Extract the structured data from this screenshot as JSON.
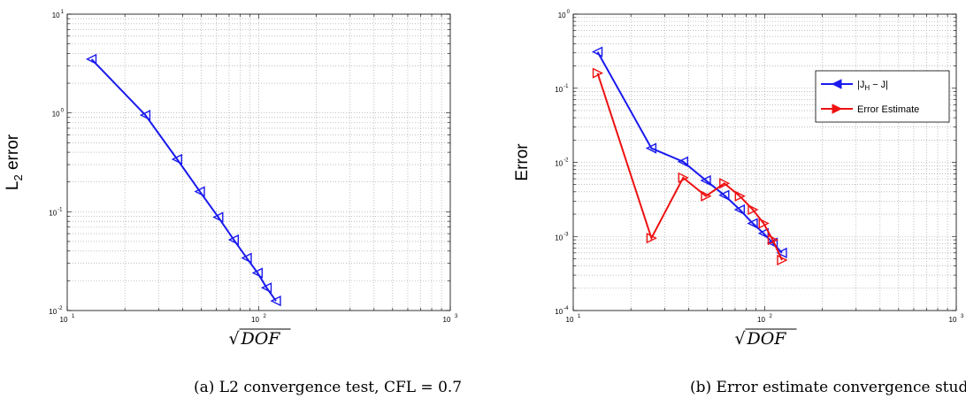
{
  "chart_data": [
    {
      "type": "line",
      "scale": "log-log",
      "xlabel": "√DOF",
      "ylabel": "L2 error",
      "xlim": [
        10,
        1000
      ],
      "ylim": [
        0.01,
        10
      ],
      "grid": true,
      "caption": "(a) L2 convergence test, CFL = 0.7",
      "x_ticks": [
        "10^1",
        "10^2",
        "10^3"
      ],
      "y_ticks": [
        "10^-2",
        "10^-1",
        "10^0",
        "10^1"
      ],
      "series": [
        {
          "color": "#1a1aee",
          "marker": "triangle-left",
          "x": [
            13.4,
            25.6,
            37.5,
            49.3,
            61.5,
            74.1,
            86.6,
            98.7,
            110.0,
            123.0
          ],
          "y": [
            3.5,
            0.95,
            0.34,
            0.16,
            0.088,
            0.052,
            0.034,
            0.024,
            0.017,
            0.0125
          ]
        }
      ]
    },
    {
      "type": "line",
      "scale": "log-log",
      "xlabel": "√DOF",
      "ylabel": "Error",
      "xlim": [
        10,
        1000
      ],
      "ylim": [
        0.0001,
        1
      ],
      "grid": true,
      "legend_position": "upper-right",
      "caption": "(b) Error estimate convergence study",
      "x_ticks": [
        "10^1",
        "10^2",
        "10^3"
      ],
      "y_ticks": [
        "10^-4",
        "10^-3",
        "10^-2",
        "10^-1",
        "10^0"
      ],
      "series": [
        {
          "name": "|J_H − J|",
          "color": "#1a1aee",
          "marker": "triangle-left",
          "x": [
            13.4,
            25.6,
            37.5,
            49.3,
            61.5,
            74.1,
            86.6,
            98.7,
            110.0,
            123.0
          ],
          "y": [
            0.31,
            0.0155,
            0.0102,
            0.0057,
            0.0036,
            0.0023,
            0.0015,
            0.0011,
            0.00082,
            0.0006
          ]
        },
        {
          "name": "Error Estimate",
          "color": "#ee1111",
          "marker": "triangle-right",
          "x": [
            13.4,
            25.6,
            37.5,
            49.3,
            61.5,
            74.1,
            86.6,
            98.7,
            110.0,
            123.0
          ],
          "y": [
            0.16,
            0.00095,
            0.0062,
            0.0035,
            0.0052,
            0.0035,
            0.0023,
            0.0015,
            0.0009,
            0.00048
          ]
        }
      ]
    }
  ]
}
